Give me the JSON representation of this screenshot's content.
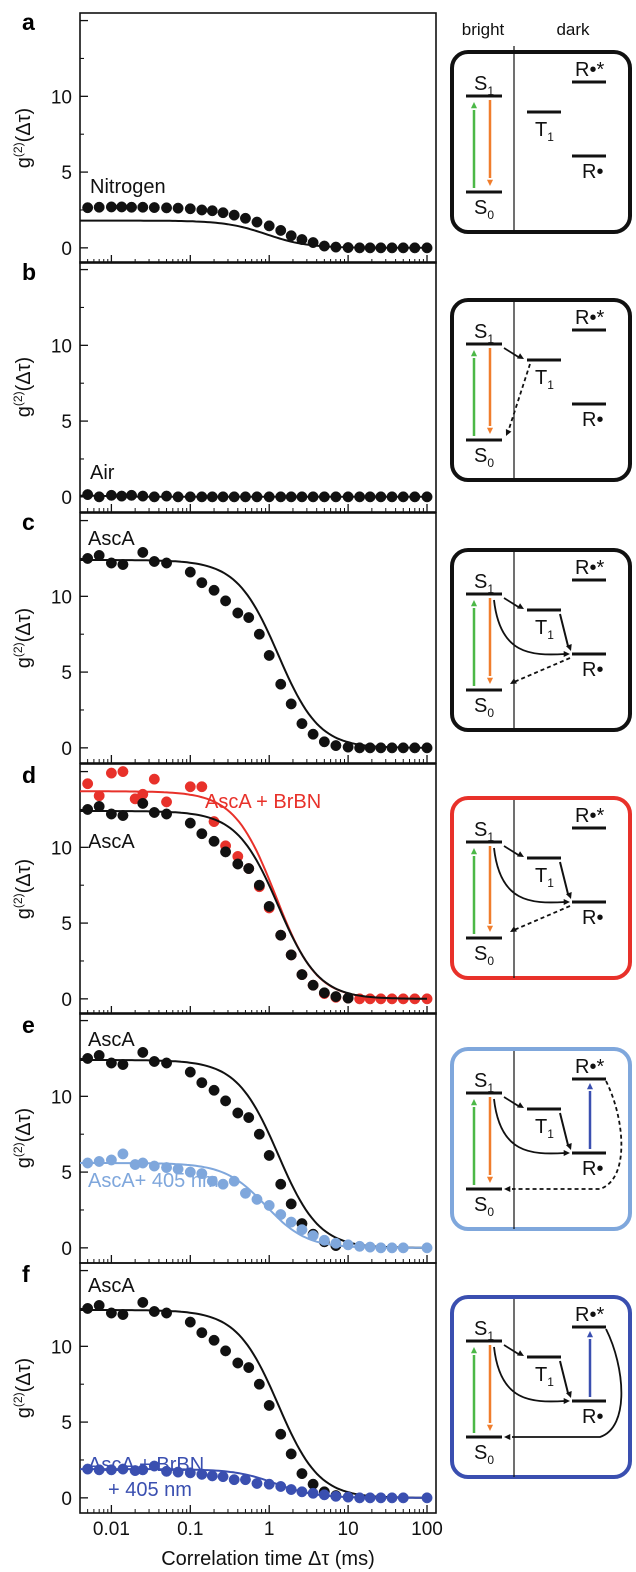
{
  "figure": {
    "x_axis_label": "Correlation time Δτ (ms)",
    "x_tick_labels": [
      "0.01",
      "0.1",
      "1",
      "10",
      "100"
    ],
    "y_tick_labels": [
      "0",
      "5",
      "10"
    ],
    "diagram_headers": {
      "bright": "bright",
      "dark": "dark"
    },
    "state_labels": {
      "s1": "S1",
      "s0": "S0",
      "t1": "T1",
      "radical": "R•",
      "radical_excited": "R•*"
    },
    "colors": {
      "black": "#111111",
      "red": "#e8312a",
      "light_blue": "#7fa7dc",
      "dark_blue": "#3a4fb0",
      "green": "#4cb847",
      "orange": "#f07d2c"
    }
  },
  "chart_data": [
    {
      "type": "scatter",
      "panel": "a",
      "ylabel": "g(2)(Δτ)",
      "xlabel": "",
      "x_scale": "log",
      "xlim": [
        0.004,
        130
      ],
      "ylim": [
        -1,
        15.5
      ],
      "series": [
        {
          "name": "Nitrogen",
          "color": "#111111",
          "fit": {
            "A": 1.8,
            "tau": 1.0,
            "c": 0.95,
            "start": 0.004
          },
          "x": [
            0.005,
            0.007,
            0.01,
            0.0135,
            0.018,
            0.025,
            0.035,
            0.05,
            0.07,
            0.1,
            0.14,
            0.19,
            0.26,
            0.36,
            0.5,
            0.7,
            1,
            1.4,
            1.9,
            2.6,
            3.6,
            5,
            7,
            10,
            14,
            19,
            26,
            36,
            50,
            70,
            100
          ],
          "y": [
            2.65,
            2.68,
            2.7,
            2.7,
            2.68,
            2.68,
            2.66,
            2.64,
            2.62,
            2.58,
            2.5,
            2.45,
            2.32,
            2.16,
            1.95,
            1.7,
            1.45,
            1.15,
            0.8,
            0.55,
            0.35,
            0.12,
            0.05,
            0.02,
            0.0,
            0.0,
            0.0,
            0.0,
            0.0,
            0.0,
            0.0
          ]
        }
      ]
    },
    {
      "type": "scatter",
      "panel": "b",
      "ylabel": "g(2)(Δτ)",
      "xlabel": "",
      "x_scale": "log",
      "xlim": [
        0.004,
        130
      ],
      "ylim": [
        -1,
        15.5
      ],
      "series": [
        {
          "name": "Air",
          "color": "#111111",
          "fit": {
            "A": 0.1,
            "tau": 0.01,
            "c": 0.95,
            "start": 0.004
          },
          "x": [
            0.005,
            0.007,
            0.01,
            0.0135,
            0.018,
            0.025,
            0.035,
            0.05,
            0.07,
            0.1,
            0.14,
            0.19,
            0.26,
            0.36,
            0.5,
            0.7,
            1,
            1.4,
            1.9,
            2.6,
            3.6,
            5,
            7,
            10,
            14,
            19,
            26,
            36,
            50,
            70,
            100
          ],
          "y": [
            0.15,
            0.0,
            0.1,
            0.05,
            0.1,
            0.05,
            0.0,
            0.05,
            0.0,
            0.0,
            0.0,
            0.0,
            0.0,
            0.0,
            0.0,
            0.0,
            0.0,
            0.0,
            0.0,
            0.0,
            0.0,
            0.0,
            0.0,
            0.0,
            0.0,
            0.0,
            0.0,
            0.0,
            0.0,
            0.0,
            0.0
          ]
        }
      ]
    },
    {
      "type": "scatter",
      "panel": "c",
      "ylabel": "g(2)(Δτ)",
      "xlabel": "",
      "x_scale": "log",
      "xlim": [
        0.004,
        130
      ],
      "ylim": [
        -1,
        15.5
      ],
      "series": [
        {
          "name": "AscA",
          "color": "#111111",
          "fit": {
            "A": 12.4,
            "tau": 1.4,
            "c": 0.95,
            "start": 0.004
          },
          "x": [
            0.005,
            0.007,
            0.01,
            0.014,
            0.025,
            0.035,
            0.05,
            0.1,
            0.14,
            0.2,
            0.28,
            0.4,
            0.55,
            0.75,
            1,
            1.4,
            1.9,
            2.6,
            3.6,
            5,
            7,
            10,
            14,
            19,
            26,
            36,
            50,
            70,
            100
          ],
          "y": [
            12.5,
            12.7,
            12.2,
            12.1,
            12.9,
            12.3,
            12.2,
            11.6,
            10.9,
            10.4,
            9.7,
            8.9,
            8.6,
            7.5,
            6.1,
            4.2,
            2.9,
            1.6,
            0.9,
            0.4,
            0.15,
            0.05,
            0.0,
            0.0,
            0.0,
            0.0,
            0.0,
            0.0,
            0.0
          ]
        }
      ]
    },
    {
      "type": "scatter",
      "panel": "d",
      "ylabel": "g(2)(Δτ)",
      "xlabel": "",
      "x_scale": "log",
      "xlim": [
        0.004,
        130
      ],
      "ylim": [
        -1,
        15.5
      ],
      "series": [
        {
          "name": "AscA + BrBN",
          "color": "#e8312a",
          "fit": {
            "A": 13.7,
            "tau": 1.3,
            "c": 0.95,
            "start": 0.004
          },
          "x": [
            0.005,
            0.007,
            0.01,
            0.014,
            0.02,
            0.025,
            0.035,
            0.05,
            0.1,
            0.14,
            0.2,
            0.28,
            0.4,
            0.55,
            0.75,
            1,
            1.4,
            1.9,
            2.6,
            3.6,
            5,
            7,
            10,
            14,
            19,
            26,
            36,
            50,
            70,
            100
          ],
          "y": [
            14.2,
            13.4,
            14.9,
            15.0,
            13.2,
            13.5,
            14.5,
            13.0,
            14.0,
            14.0,
            11.7,
            10.1,
            9.4,
            8.6,
            7.4,
            6.0,
            4.2,
            2.9,
            1.6,
            0.9,
            0.35,
            0.1,
            0.05,
            0.0,
            0.0,
            0.0,
            0.0,
            0.0,
            0.0,
            0.0
          ]
        },
        {
          "name": "AscA",
          "color": "#111111",
          "fit": {
            "A": 12.4,
            "tau": 1.4,
            "c": 0.95,
            "start": 0.004
          },
          "x": [
            0.005,
            0.007,
            0.01,
            0.014,
            0.025,
            0.035,
            0.05,
            0.1,
            0.14,
            0.2,
            0.28,
            0.4,
            0.55,
            0.75,
            1,
            1.4,
            1.9,
            2.6,
            3.6,
            5,
            7,
            10
          ],
          "y": [
            12.5,
            12.7,
            12.2,
            12.1,
            12.9,
            12.3,
            12.2,
            11.6,
            10.9,
            10.4,
            9.7,
            8.9,
            8.6,
            7.5,
            6.1,
            4.2,
            2.9,
            1.6,
            0.9,
            0.4,
            0.15,
            0.05
          ]
        }
      ]
    },
    {
      "type": "scatter",
      "panel": "e",
      "ylabel": "g(2)(Δτ)",
      "xlabel": "",
      "x_scale": "log",
      "xlim": [
        0.004,
        130
      ],
      "ylim": [
        -1,
        15.5
      ],
      "series": [
        {
          "name": "AscA",
          "color": "#111111",
          "fit": {
            "A": 12.4,
            "tau": 1.4,
            "c": 0.95,
            "start": 0.004
          },
          "x": [
            0.005,
            0.007,
            0.01,
            0.014,
            0.025,
            0.035,
            0.05,
            0.1,
            0.14,
            0.2,
            0.28,
            0.4,
            0.55,
            0.75,
            1,
            1.4,
            1.9,
            2.6,
            3.6,
            5,
            7
          ],
          "y": [
            12.5,
            12.7,
            12.2,
            12.1,
            12.9,
            12.3,
            12.2,
            11.6,
            10.9,
            10.4,
            9.7,
            8.9,
            8.6,
            7.5,
            6.1,
            4.2,
            2.9,
            1.6,
            0.9,
            0.4,
            0.15
          ]
        },
        {
          "name": "AscA+ 405 nm",
          "color": "#7fa7dc",
          "fit": {
            "A": 5.6,
            "tau": 0.9,
            "c": 0.8,
            "start": 0.004
          },
          "x": [
            0.005,
            0.007,
            0.01,
            0.014,
            0.02,
            0.025,
            0.035,
            0.05,
            0.07,
            0.1,
            0.14,
            0.19,
            0.26,
            0.36,
            0.5,
            0.7,
            1,
            1.4,
            1.9,
            2.6,
            3.6,
            5,
            7,
            10,
            14,
            19,
            26,
            36,
            50,
            100
          ],
          "y": [
            5.6,
            5.7,
            5.8,
            6.2,
            5.5,
            5.6,
            5.4,
            5.3,
            5.2,
            5.0,
            4.9,
            4.4,
            4.2,
            4.4,
            3.6,
            3.2,
            2.8,
            2.2,
            1.7,
            1.2,
            0.8,
            0.5,
            0.3,
            0.2,
            0.1,
            0.05,
            0.0,
            0.0,
            0.0,
            0.0
          ]
        }
      ]
    },
    {
      "type": "scatter",
      "panel": "f",
      "ylabel": "g(2)(Δτ)",
      "xlabel": "Correlation time Δτ (ms)",
      "x_scale": "log",
      "xlim": [
        0.004,
        130
      ],
      "ylim": [
        -1,
        15.5
      ],
      "series": [
        {
          "name": "AscA",
          "color": "#111111",
          "fit": {
            "A": 12.4,
            "tau": 1.4,
            "c": 0.95,
            "start": 0.004
          },
          "x": [
            0.005,
            0.007,
            0.01,
            0.014,
            0.025,
            0.035,
            0.05,
            0.1,
            0.14,
            0.2,
            0.28,
            0.4,
            0.55,
            0.75,
            1,
            1.4,
            1.9,
            2.6,
            3.6,
            5,
            7
          ],
          "y": [
            12.5,
            12.7,
            12.2,
            12.1,
            12.9,
            12.3,
            12.2,
            11.6,
            10.9,
            10.4,
            9.7,
            8.9,
            8.6,
            7.5,
            6.1,
            4.2,
            2.9,
            1.6,
            0.9,
            0.4,
            0.15
          ]
        },
        {
          "name": "AscA + BrBN\n+ 405 nm",
          "color": "#3a4fb0",
          "fit": {
            "A": 1.9,
            "tau": 1.2,
            "c": 0.8,
            "start": 0.004
          },
          "x": [
            0.005,
            0.007,
            0.01,
            0.014,
            0.02,
            0.025,
            0.035,
            0.05,
            0.07,
            0.1,
            0.14,
            0.19,
            0.26,
            0.36,
            0.5,
            0.7,
            1,
            1.4,
            1.9,
            2.6,
            3.6,
            5,
            7,
            10,
            14,
            19,
            26,
            36,
            50,
            100
          ],
          "y": [
            1.9,
            1.85,
            1.85,
            1.9,
            1.8,
            1.85,
            2.1,
            1.75,
            1.7,
            1.65,
            1.55,
            1.45,
            1.4,
            1.2,
            1.2,
            0.95,
            0.9,
            0.75,
            0.55,
            0.4,
            0.3,
            0.2,
            0.1,
            0.05,
            0.0,
            0.0,
            0.0,
            0.0,
            0.0,
            0.0
          ]
        }
      ]
    }
  ],
  "panels": [
    {
      "letter": "a",
      "label_lines": [
        "Nitrogen"
      ],
      "box_color": "#111111",
      "diagram": "a"
    },
    {
      "letter": "b",
      "label_lines": [
        "Air"
      ],
      "box_color": "#111111",
      "diagram": "b"
    },
    {
      "letter": "c",
      "label_lines": [
        "AscA"
      ],
      "box_color": "#111111",
      "diagram": "c"
    },
    {
      "letter": "d",
      "label_lines": [
        "AscA + BrBN",
        "AscA"
      ],
      "box_color": "#e8312a",
      "diagram": "d"
    },
    {
      "letter": "e",
      "label_lines": [
        "AscA",
        "AscA+ 405 nm"
      ],
      "box_color": "#7fa7dc",
      "diagram": "e"
    },
    {
      "letter": "f",
      "label_lines": [
        "AscA",
        "AscA + BrBN",
        "+ 405 nm"
      ],
      "box_color": "#3a4fb0",
      "diagram": "f"
    }
  ]
}
